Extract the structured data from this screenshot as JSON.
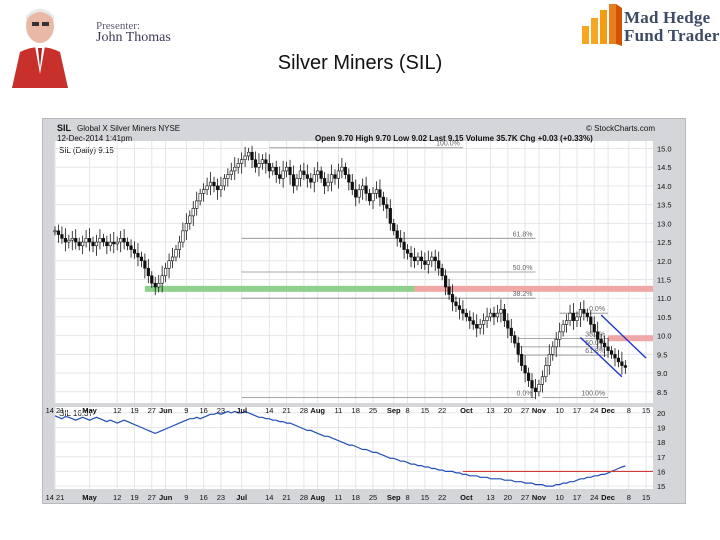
{
  "slide": {
    "title": "Silver Miners (SIL)",
    "presenter_label": "Presenter:",
    "presenter_name": "John Thomas",
    "logo_line1": "Mad Hedge",
    "logo_line2": "Fund Trader"
  },
  "chart_data": {
    "type": "candlestick",
    "header": {
      "symbol": "SIL",
      "name": "Global X Silver Miners NYSE",
      "date": "12-Dec-2014 1:41pm",
      "quote": "Open 9.70 High 9.70 Low 9.02 Last 9.15 Volume 35.7K Chg +0.03 (+0.33%)",
      "source": "© StockCharts.com",
      "series_label": "SIL (Daily) 9.15"
    },
    "y_ticks": [
      8.5,
      9.0,
      9.5,
      10.0,
      10.5,
      11.0,
      11.5,
      12.0,
      12.5,
      13.0,
      13.5,
      14.0,
      14.5,
      15.0
    ],
    "y_tick_labels": [
      "8.5",
      "9.0",
      "9.5",
      "10.0",
      "10.5",
      "11.0",
      "11.5",
      "12.0",
      "12.5",
      "13.0",
      "13.5",
      "14.0",
      "14.5",
      "15.0"
    ],
    "ylim": [
      8.2,
      15.2
    ],
    "x_ticks": [
      {
        "label": "14 21",
        "day": 0
      },
      {
        "label": "May",
        "day": 10,
        "month": true
      },
      {
        "label": "12",
        "day": 18
      },
      {
        "label": "19",
        "day": 23
      },
      {
        "label": "27",
        "day": 28
      },
      {
        "label": "Jun",
        "day": 32,
        "month": true
      },
      {
        "label": "9",
        "day": 38
      },
      {
        "label": "16",
        "day": 43
      },
      {
        "label": "23",
        "day": 48
      },
      {
        "label": "Jul",
        "day": 54,
        "month": true
      },
      {
        "label": "14",
        "day": 62
      },
      {
        "label": "21",
        "day": 67
      },
      {
        "label": "28",
        "day": 72
      },
      {
        "label": "Aug",
        "day": 76,
        "month": true
      },
      {
        "label": "11",
        "day": 82
      },
      {
        "label": "18",
        "day": 87
      },
      {
        "label": "25",
        "day": 92
      },
      {
        "label": "Sep",
        "day": 98,
        "month": true
      },
      {
        "label": "8",
        "day": 102
      },
      {
        "label": "15",
        "day": 107
      },
      {
        "label": "22",
        "day": 112
      },
      {
        "label": "Oct",
        "day": 119,
        "month": true
      },
      {
        "label": "13",
        "day": 126
      },
      {
        "label": "20",
        "day": 131
      },
      {
        "label": "27",
        "day": 136
      },
      {
        "label": "Nov",
        "day": 140,
        "month": true
      },
      {
        "label": "10",
        "day": 146
      },
      {
        "label": "17",
        "day": 151
      },
      {
        "label": "24",
        "day": 156
      },
      {
        "label": "Dec",
        "day": 160,
        "month": true
      },
      {
        "label": "8",
        "day": 166
      },
      {
        "label": "15",
        "day": 171
      }
    ],
    "x_range_days": [
      0,
      173
    ],
    "closes": [
      12.8,
      12.7,
      12.6,
      12.5,
      12.55,
      12.6,
      12.5,
      12.4,
      12.5,
      12.6,
      12.5,
      12.4,
      12.5,
      12.6,
      12.5,
      12.4,
      12.5,
      12.45,
      12.5,
      12.6,
      12.5,
      12.4,
      12.3,
      12.2,
      12.1,
      12.0,
      11.8,
      11.6,
      11.4,
      11.3,
      11.4,
      11.6,
      11.8,
      12.0,
      12.1,
      12.3,
      12.5,
      12.8,
      13.0,
      13.2,
      13.4,
      13.6,
      13.8,
      13.9,
      14.0,
      14.1,
      14.0,
      13.9,
      14.0,
      14.2,
      14.3,
      14.4,
      14.5,
      14.6,
      14.7,
      14.8,
      14.9,
      14.7,
      14.5,
      14.6,
      14.7,
      14.6,
      14.4,
      14.5,
      14.3,
      14.2,
      14.4,
      14.5,
      14.3,
      14.0,
      14.2,
      14.4,
      14.3,
      14.2,
      14.1,
      14.3,
      14.4,
      14.2,
      14.0,
      14.1,
      14.3,
      14.2,
      14.4,
      14.5,
      14.3,
      14.1,
      13.9,
      13.7,
      13.9,
      14.0,
      13.8,
      13.6,
      13.8,
      13.9,
      13.7,
      13.5,
      13.4,
      13.0,
      12.8,
      12.6,
      12.5,
      12.3,
      12.2,
      12.1,
      12.0,
      12.1,
      12.0,
      11.9,
      12.0,
      12.1,
      12.0,
      11.8,
      11.6,
      11.3,
      11.1,
      10.9,
      10.8,
      10.7,
      10.6,
      10.5,
      10.4,
      10.3,
      10.2,
      10.3,
      10.4,
      10.5,
      10.6,
      10.5,
      10.6,
      10.7,
      10.4,
      10.2,
      10.0,
      9.8,
      9.5,
      9.2,
      9.0,
      8.8,
      8.6,
      8.5,
      8.7,
      8.9,
      9.2,
      9.5,
      9.7,
      9.9,
      10.1,
      10.3,
      10.4,
      10.6,
      10.4,
      10.5,
      10.7,
      10.6,
      10.5,
      10.3,
      10.1,
      9.9,
      9.8,
      9.7,
      9.6,
      9.5,
      9.4,
      9.3,
      9.2,
      9.15
    ],
    "fib_levels": [
      {
        "label": "100.0%",
        "value": 15.02,
        "x_from_day": 62,
        "x_to_day": 118
      },
      {
        "label": "61.8%",
        "value": 12.6,
        "x_from_day": 54,
        "x_to_day": 139
      },
      {
        "label": "50.0%",
        "value": 11.7,
        "x_from_day": 54,
        "x_to_day": 139
      },
      {
        "label": "38.2%",
        "value": 11.0,
        "x_from_day": 54,
        "x_to_day": 139
      },
      {
        "label": "0.0%",
        "value": 10.6,
        "x_from_day": 146,
        "x_to_day": 160
      },
      {
        "label": "38.2%",
        "value": 9.92,
        "x_from_day": 134,
        "x_to_day": 160
      },
      {
        "label": "50.0%",
        "value": 9.7,
        "x_from_day": 134,
        "x_to_day": 160
      },
      {
        "label": "61.8%",
        "value": 9.48,
        "x_from_day": 134,
        "x_to_day": 160
      },
      {
        "label": "0.0%",
        "value": 8.35,
        "x_from_day": 54,
        "x_to_day": 139
      },
      {
        "label": "100.0%",
        "value": 8.35,
        "x_from_day": 141,
        "x_to_day": 160
      }
    ],
    "support_band": {
      "value": 11.25,
      "x_from_day": 26,
      "x_to_day": 104,
      "color": "#8fd08f"
    },
    "resistance_bands": [
      {
        "value": 11.25,
        "x_from_day": 104,
        "x_to_day": 173,
        "color": "#f2a7a7"
      },
      {
        "value": 9.93,
        "x_from_day": 160,
        "x_to_day": 173,
        "color": "#f2a7a7"
      }
    ],
    "channel": [
      {
        "day1": 158,
        "v1": 10.55,
        "day2": 171,
        "v2": 9.4
      },
      {
        "day1": 152,
        "v1": 9.95,
        "day2": 164,
        "v2": 8.9
      }
    ],
    "channel_color": "#1f35c8",
    "lower_panel": {
      "series_label": "SIL 16.37",
      "y_ticks": [
        15,
        16,
        17,
        18,
        19,
        20
      ],
      "y_tick_labels": [
        "15",
        "16",
        "17",
        "18",
        "19",
        "20"
      ],
      "ylim": [
        14.8,
        20.4
      ],
      "values": [
        19.8,
        19.7,
        19.6,
        19.75,
        19.7,
        19.6,
        19.5,
        19.6,
        19.7,
        19.6,
        19.5,
        19.6,
        19.7,
        19.6,
        19.5,
        19.4,
        19.5,
        19.4,
        19.3,
        19.4,
        19.5,
        19.4,
        19.3,
        19.2,
        19.1,
        19.0,
        18.9,
        18.8,
        18.7,
        18.6,
        18.7,
        18.8,
        18.9,
        19.0,
        19.1,
        19.2,
        19.3,
        19.4,
        19.5,
        19.6,
        19.6,
        19.7,
        19.6,
        19.7,
        19.8,
        19.9,
        19.9,
        20.0,
        19.9,
        20.0,
        20.1,
        20.0,
        20.1,
        20.0,
        20.0,
        20.1,
        20.0,
        19.9,
        19.8,
        19.7,
        19.7,
        19.6,
        19.6,
        19.5,
        19.5,
        19.4,
        19.4,
        19.3,
        19.3,
        19.2,
        19.1,
        19.0,
        18.9,
        18.8,
        18.8,
        18.7,
        18.6,
        18.5,
        18.4,
        18.4,
        18.3,
        18.2,
        18.1,
        18.0,
        17.9,
        17.8,
        17.8,
        17.7,
        17.6,
        17.5,
        17.5,
        17.4,
        17.3,
        17.3,
        17.2,
        17.1,
        17.0,
        16.9,
        16.9,
        16.8,
        16.7,
        16.7,
        16.6,
        16.5,
        16.5,
        16.4,
        16.4,
        16.3,
        16.3,
        16.2,
        16.2,
        16.1,
        16.1,
        16.0,
        16.0,
        16.0,
        15.9,
        15.9,
        15.8,
        15.8,
        15.7,
        15.7,
        15.7,
        15.6,
        15.6,
        15.6,
        15.5,
        15.5,
        15.5,
        15.5,
        15.4,
        15.4,
        15.4,
        15.3,
        15.3,
        15.3,
        15.2,
        15.2,
        15.2,
        15.1,
        15.1,
        15.1,
        15.0,
        15.0,
        15.0,
        15.1,
        15.1,
        15.2,
        15.2,
        15.3,
        15.3,
        15.4,
        15.5,
        15.5,
        15.6,
        15.6,
        15.7,
        15.7,
        15.8,
        15.8,
        15.9,
        16.0,
        16.1,
        16.2,
        16.3,
        16.37
      ],
      "support_line": {
        "value": 16.0,
        "x_from_day": 118,
        "x_to_day": 173,
        "color": "#d23a3a"
      }
    }
  }
}
